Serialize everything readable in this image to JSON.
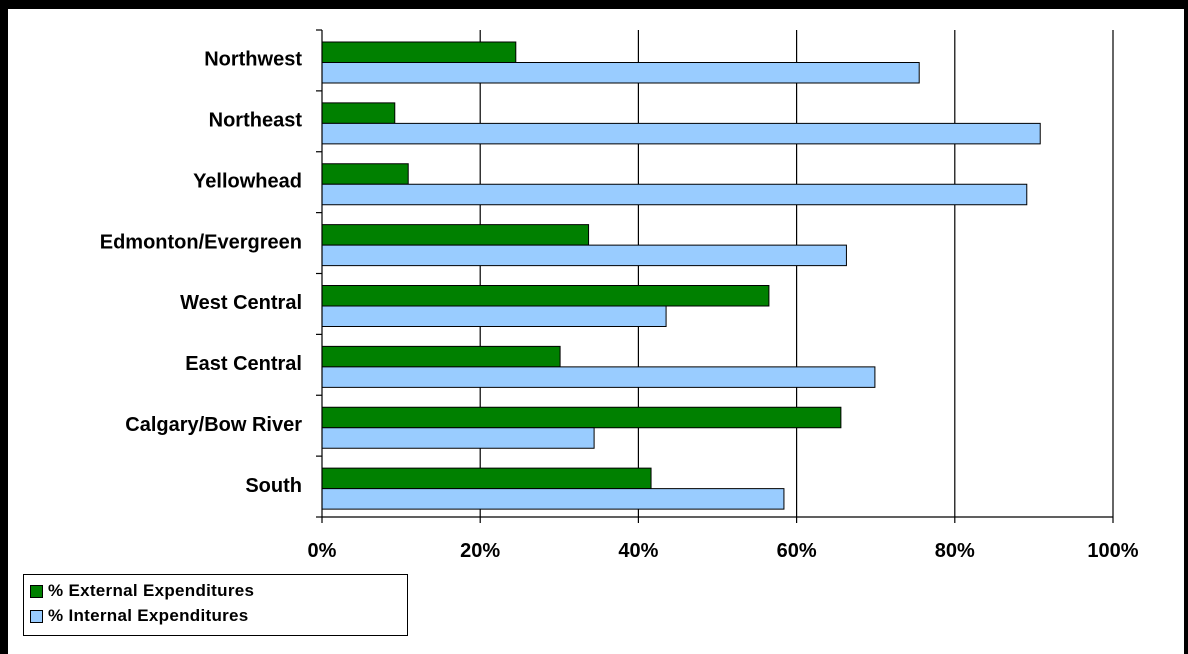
{
  "chart_data": {
    "type": "bar",
    "orientation": "horizontal",
    "categories": [
      "Northwest",
      "Northeast",
      "Yellowhead",
      "Edmonton/Evergreen",
      "West Central",
      "East Central",
      "Calgary/Bow River",
      "South"
    ],
    "series": [
      {
        "name": "% External Expenditures",
        "color": "#008000",
        "values": [
          24.5,
          9.2,
          10.9,
          33.7,
          56.5,
          30.1,
          65.6,
          41.6
        ]
      },
      {
        "name": "% Internal Expenditures",
        "color": "#99ccff",
        "values": [
          75.5,
          90.8,
          89.1,
          66.3,
          43.5,
          69.9,
          34.4,
          58.4
        ]
      }
    ],
    "xlim": [
      0,
      100
    ],
    "xticks": [
      "0%",
      "20%",
      "40%",
      "60%",
      "80%",
      "100%"
    ],
    "xgrid": true,
    "legend_position": "bottom-left",
    "title": "",
    "xlabel": "",
    "ylabel": ""
  }
}
